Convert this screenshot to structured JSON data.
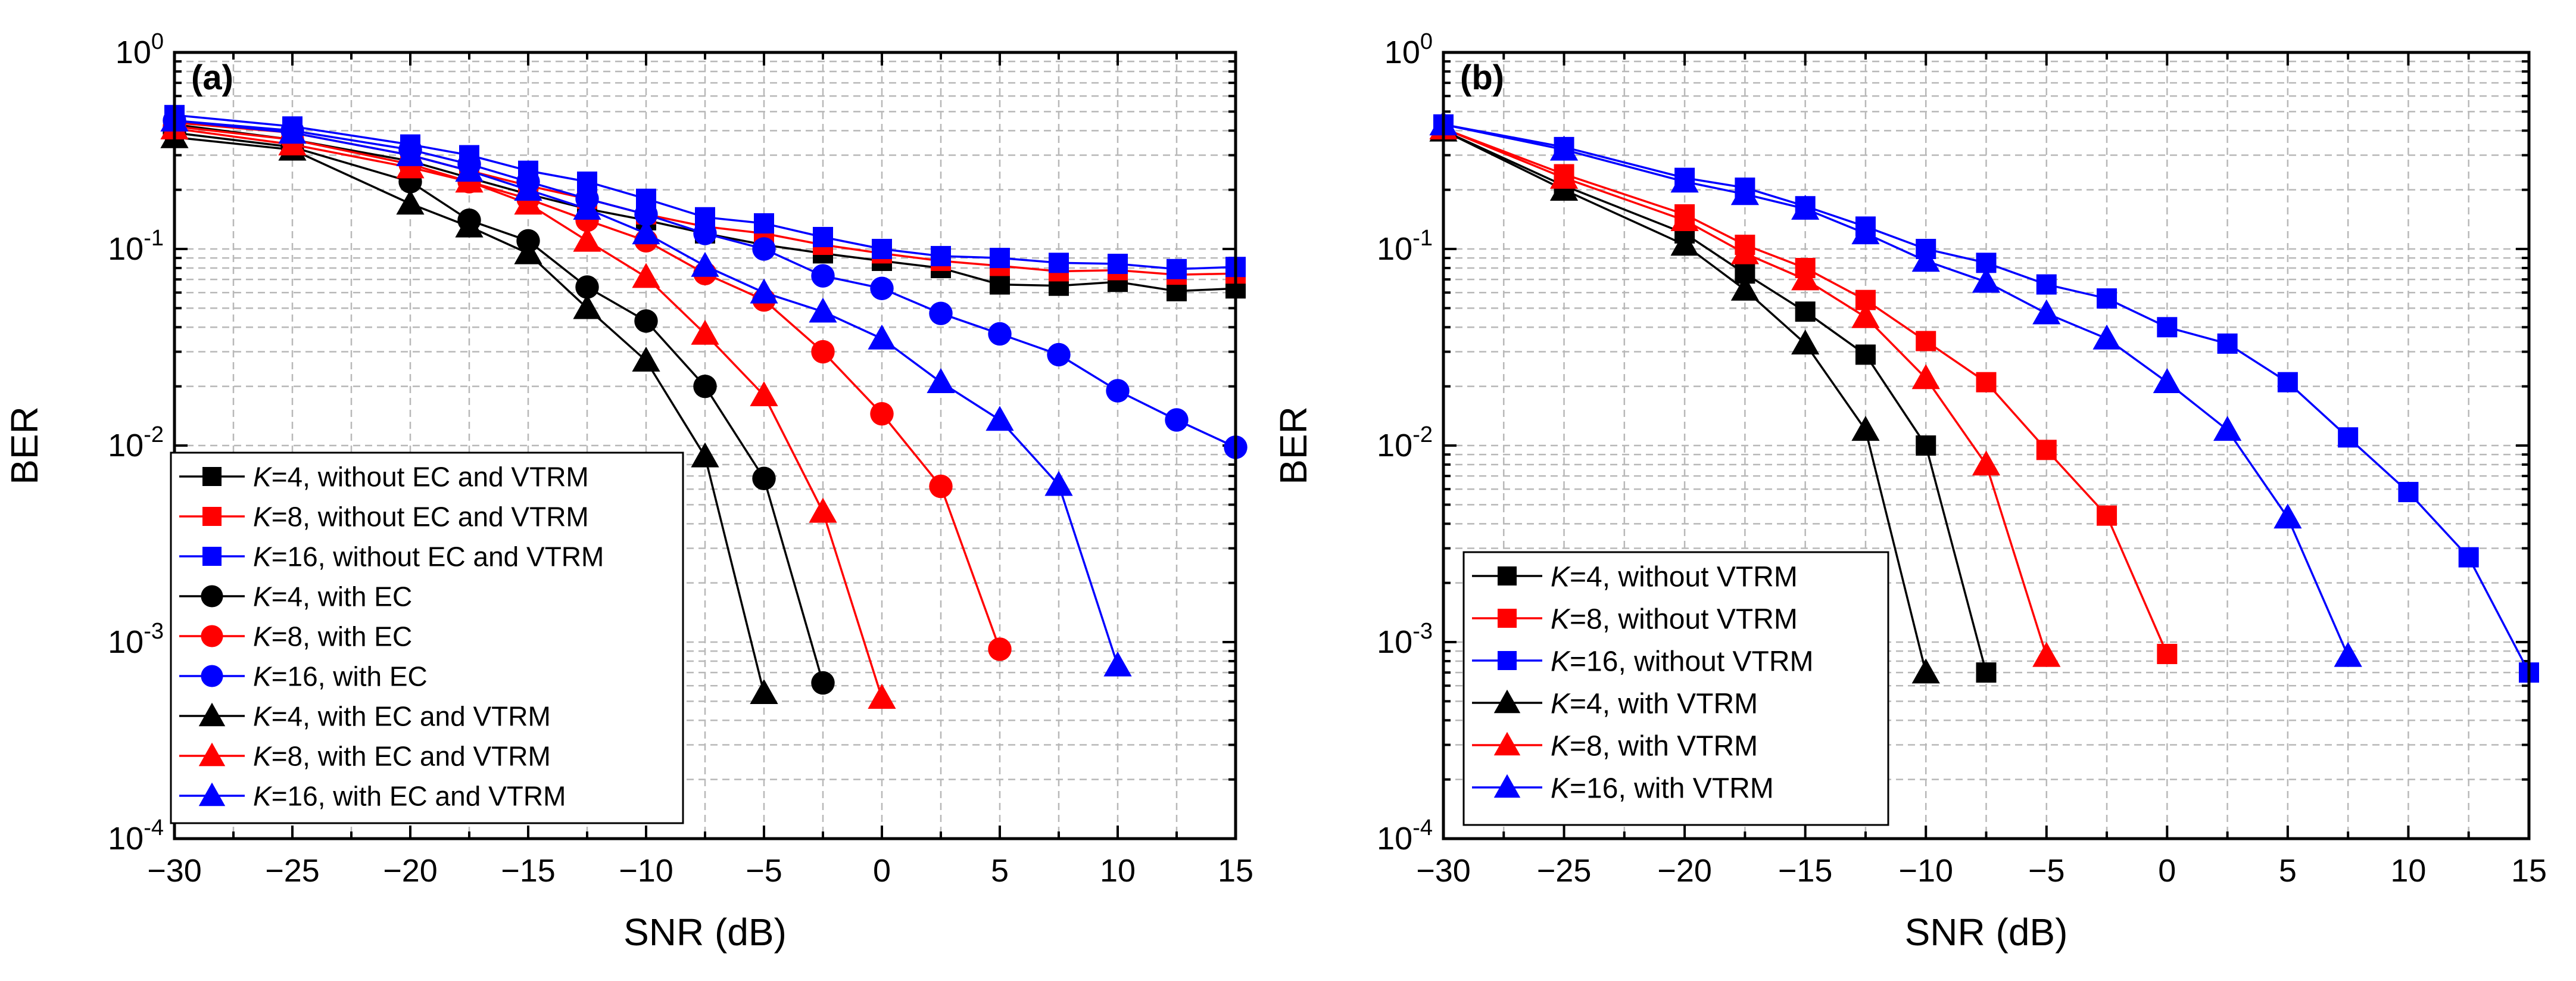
{
  "figure": {
    "panel_labels": [
      "(a)",
      "(b)"
    ]
  },
  "chart_data": [
    {
      "type": "line",
      "panel": "(a)",
      "xlabel": "SNR (dB)",
      "ylabel": "BER",
      "xlim": [
        -30,
        15
      ],
      "ylim": [
        0.0001,
        1
      ],
      "yscale": "log",
      "xticks": [
        "−30",
        "−25",
        "−20",
        "−15",
        "−10",
        "−5",
        "0",
        "5",
        "10",
        "15"
      ],
      "yticks": [
        {
          "base": "10",
          "exp": "0"
        },
        {
          "base": "10",
          "exp": "-1"
        },
        {
          "base": "10",
          "exp": "-2"
        },
        {
          "base": "10",
          "exp": "-3"
        },
        {
          "base": "10",
          "exp": "-4"
        }
      ],
      "grid": true,
      "legend_position": "bottom-left",
      "series": [
        {
          "name": "K=4, without EC and VTRM",
          "k": "K",
          "rest": "=4, without EC and VTRM",
          "color": "#000000",
          "marker": "square",
          "x": [
            -30,
            -25,
            -20,
            -17.5,
            -15,
            -12.5,
            -10,
            -7.5,
            -5,
            -2.5,
            0,
            2.5,
            5,
            7.5,
            10,
            12.5,
            15
          ],
          "y": [
            0.43,
            0.36,
            0.28,
            0.23,
            0.19,
            0.16,
            0.14,
            0.12,
            0.105,
            0.095,
            0.087,
            0.08,
            0.066,
            0.065,
            0.068,
            0.061,
            0.063
          ]
        },
        {
          "name": "K=8, without EC and VTRM",
          "k": "K",
          "rest": "=8, without EC and VTRM",
          "color": "#ff0000",
          "marker": "square",
          "x": [
            -30,
            -25,
            -20,
            -17.5,
            -15,
            -12.5,
            -10,
            -7.5,
            -5,
            -2.5,
            0,
            2.5,
            5,
            7.5,
            10,
            12.5,
            15
          ],
          "y": [
            0.44,
            0.39,
            0.3,
            0.25,
            0.21,
            0.18,
            0.15,
            0.13,
            0.12,
            0.105,
            0.095,
            0.087,
            0.082,
            0.077,
            0.078,
            0.074,
            0.075
          ]
        },
        {
          "name": "K=16, without EC and VTRM",
          "k": "K",
          "rest": "=16, without EC and VTRM",
          "color": "#0000ff",
          "marker": "square",
          "x": [
            -30,
            -25,
            -20,
            -17.5,
            -15,
            -12.5,
            -10,
            -7.5,
            -5,
            -2.5,
            0,
            2.5,
            5,
            7.5,
            10,
            12.5,
            15
          ],
          "y": [
            0.48,
            0.42,
            0.34,
            0.3,
            0.25,
            0.22,
            0.18,
            0.145,
            0.135,
            0.115,
            0.1,
            0.092,
            0.09,
            0.085,
            0.084,
            0.079,
            0.081
          ]
        },
        {
          "name": "K=4, with EC",
          "k": "K",
          "rest": "=4, with EC",
          "color": "#000000",
          "marker": "circle",
          "x": [
            -30,
            -25,
            -20,
            -17.5,
            -15,
            -12.5,
            -10,
            -7.5,
            -5,
            -2.5
          ],
          "y": [
            0.39,
            0.33,
            0.22,
            0.14,
            0.11,
            0.064,
            0.043,
            0.02,
            0.0068,
            0.00062
          ]
        },
        {
          "name": "K=8, with EC",
          "k": "K",
          "rest": "=8, with EC",
          "color": "#ff0000",
          "marker": "circle",
          "x": [
            -30,
            -25,
            -20,
            -17.5,
            -15,
            -12.5,
            -10,
            -7.5,
            -5,
            -2.5,
            0,
            2.5,
            5
          ],
          "y": [
            0.42,
            0.36,
            0.27,
            0.22,
            0.18,
            0.14,
            0.11,
            0.075,
            0.055,
            0.03,
            0.0145,
            0.0062,
            0.00092
          ]
        },
        {
          "name": "K=16, with EC",
          "k": "K",
          "rest": "=16, with EC",
          "color": "#0000ff",
          "marker": "circle",
          "x": [
            -30,
            -25,
            -20,
            -17.5,
            -15,
            -12.5,
            -10,
            -7.5,
            -5,
            -2.5,
            0,
            2.5,
            5,
            7.5,
            10,
            12.5,
            15
          ],
          "y": [
            0.45,
            0.4,
            0.32,
            0.27,
            0.22,
            0.18,
            0.15,
            0.12,
            0.1,
            0.073,
            0.063,
            0.047,
            0.037,
            0.029,
            0.019,
            0.0135,
            0.0098
          ]
        },
        {
          "name": "K=4, with EC and VTRM",
          "k": "K",
          "rest": "=4, with EC and VTRM",
          "color": "#000000",
          "marker": "triangle",
          "x": [
            -30,
            -25,
            -20,
            -17.5,
            -15,
            -12.5,
            -10,
            -7.5,
            -5
          ],
          "y": [
            0.37,
            0.32,
            0.17,
            0.13,
            0.095,
            0.05,
            0.027,
            0.0088,
            0.00055
          ]
        },
        {
          "name": "K=8, with EC and VTRM",
          "k": "K",
          "rest": "=8, with EC and VTRM",
          "color": "#ff0000",
          "marker": "triangle",
          "x": [
            -30,
            -25,
            -20,
            -17.5,
            -15,
            -12.5,
            -10,
            -7.5,
            -5,
            -2.5,
            0
          ],
          "y": [
            0.41,
            0.34,
            0.26,
            0.22,
            0.17,
            0.11,
            0.072,
            0.037,
            0.018,
            0.0046,
            0.00052
          ]
        },
        {
          "name": "K=16, with EC and VTRM",
          "k": "K",
          "rest": "=16, with EC and VTRM",
          "color": "#0000ff",
          "marker": "triangle",
          "x": [
            -30,
            -25,
            -20,
            -17.5,
            -15,
            -12.5,
            -10,
            -7.5,
            -5,
            -2.5,
            0,
            2.5,
            5,
            7.5,
            10
          ],
          "y": [
            0.45,
            0.39,
            0.3,
            0.25,
            0.2,
            0.16,
            0.12,
            0.082,
            0.06,
            0.048,
            0.035,
            0.021,
            0.0135,
            0.0063,
            0.00076
          ]
        }
      ]
    },
    {
      "type": "line",
      "panel": "(b)",
      "xlabel": "SNR (dB)",
      "ylabel": "BER",
      "xlim": [
        -30,
        15
      ],
      "ylim": [
        0.0001,
        1
      ],
      "yscale": "log",
      "xticks": [
        "−30",
        "−25",
        "−20",
        "−15",
        "−10",
        "−5",
        "0",
        "5",
        "10",
        "15"
      ],
      "yticks": [
        {
          "base": "10",
          "exp": "0"
        },
        {
          "base": "10",
          "exp": "-1"
        },
        {
          "base": "10",
          "exp": "-2"
        },
        {
          "base": "10",
          "exp": "-3"
        },
        {
          "base": "10",
          "exp": "-4"
        }
      ],
      "grid": true,
      "legend_position": "bottom-left",
      "series": [
        {
          "name": "K=4, without VTRM",
          "k": "K",
          "rest": "=4, without VTRM",
          "color": "#000000",
          "marker": "square",
          "x": [
            -30,
            -25,
            -20,
            -17.5,
            -15,
            -12.5,
            -10,
            -7.5
          ],
          "y": [
            0.4,
            0.21,
            0.12,
            0.075,
            0.048,
            0.029,
            0.01,
            0.0007
          ]
        },
        {
          "name": "K=8, without VTRM",
          "k": "K",
          "rest": "=8, without VTRM",
          "color": "#ff0000",
          "marker": "square",
          "x": [
            -30,
            -25,
            -20,
            -17.5,
            -15,
            -12.5,
            -10,
            -7.5,
            -5,
            -2.5,
            0
          ],
          "y": [
            0.41,
            0.24,
            0.15,
            0.105,
            0.08,
            0.055,
            0.034,
            0.021,
            0.0095,
            0.0044,
            0.00087
          ]
        },
        {
          "name": "K=16, without VTRM",
          "k": "K",
          "rest": "=16, without VTRM",
          "color": "#0000ff",
          "marker": "square",
          "x": [
            -30,
            -25,
            -20,
            -17.5,
            -15,
            -12.5,
            -10,
            -7.5,
            -5,
            -2.5,
            0,
            2.5,
            5,
            7.5,
            10,
            12.5,
            15
          ],
          "y": [
            0.43,
            0.33,
            0.23,
            0.205,
            0.165,
            0.13,
            0.1,
            0.085,
            0.066,
            0.056,
            0.04,
            0.033,
            0.021,
            0.011,
            0.0058,
            0.0027,
            0.0007
          ]
        },
        {
          "name": "K=4, with VTRM",
          "k": "K",
          "rest": "=4, with VTRM",
          "color": "#000000",
          "marker": "triangle",
          "x": [
            -30,
            -25,
            -20,
            -17.5,
            -15,
            -12.5,
            -10
          ],
          "y": [
            0.4,
            0.2,
            0.105,
            0.062,
            0.033,
            0.012,
            0.0007
          ]
        },
        {
          "name": "K=8, with VTRM",
          "k": "K",
          "rest": "=8, with VTRM",
          "color": "#ff0000",
          "marker": "triangle",
          "x": [
            -30,
            -25,
            -20,
            -17.5,
            -15,
            -12.5,
            -10,
            -7.5,
            -5
          ],
          "y": [
            0.41,
            0.23,
            0.14,
            0.095,
            0.07,
            0.045,
            0.022,
            0.008,
            0.00085
          ]
        },
        {
          "name": "K=16, with VTRM",
          "k": "K",
          "rest": "=16, with VTRM",
          "color": "#0000ff",
          "marker": "triangle",
          "x": [
            -30,
            -25,
            -20,
            -17.5,
            -15,
            -12.5,
            -10,
            -7.5,
            -5,
            -2.5,
            0,
            2.5,
            5,
            7.5
          ],
          "y": [
            0.43,
            0.32,
            0.22,
            0.19,
            0.16,
            0.12,
            0.087,
            0.068,
            0.047,
            0.035,
            0.021,
            0.012,
            0.0043,
            0.00085
          ]
        }
      ]
    }
  ]
}
